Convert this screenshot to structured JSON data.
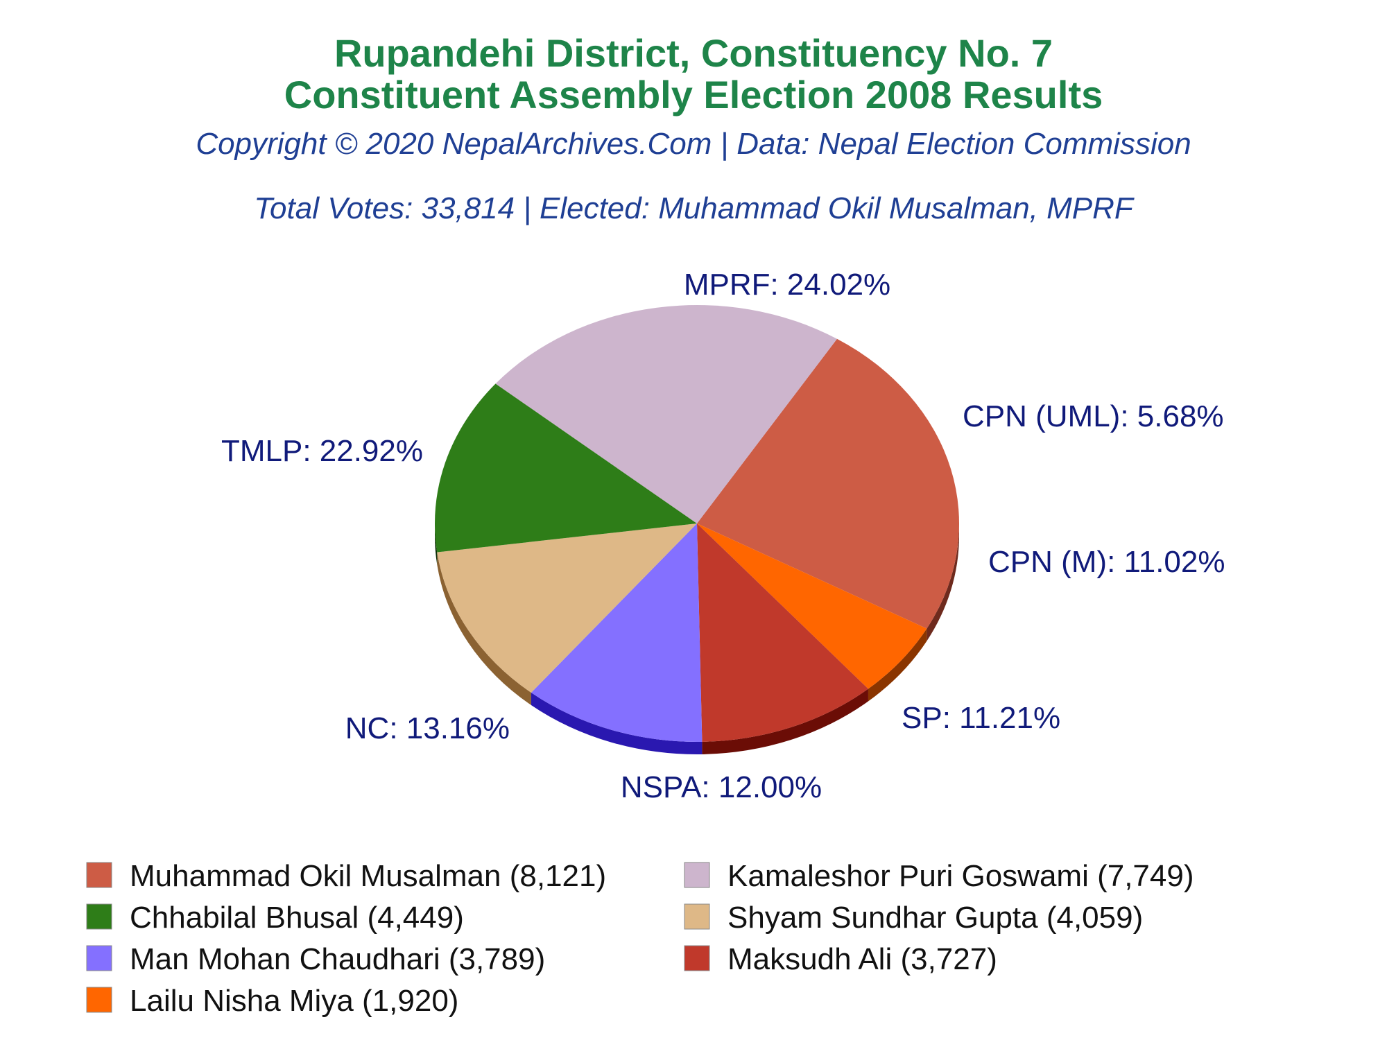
{
  "chart_data": {
    "type": "pie",
    "title_lines": [
      "Rupandehi District, Constituency No. 7",
      "Constituent Assembly Election 2008 Results"
    ],
    "subtitle": "Copyright © 2020 NepalArchives.Com | Data: Nepal Election Commission",
    "summary": "Total Votes: 33,814 | Elected: Muhammad Okil Musalman, MPRF",
    "slices": [
      {
        "label": "MPRF: 24.02%",
        "value": 24.02,
        "color": "#cd5c45",
        "side_color": "#6e2a1d"
      },
      {
        "label": "CPN (UML): 5.68%",
        "value": 5.68,
        "color": "#ff6600",
        "side_color": "#8a3500"
      },
      {
        "label": "CPN (M): 11.02%",
        "value": 11.02,
        "color": "#c0392b",
        "side_color": "#6b0d06"
      },
      {
        "label": "SP: 11.21%",
        "value": 11.21,
        "color": "#8470ff",
        "side_color": "#2a18b0"
      },
      {
        "label": "NSPA: 12.00%",
        "value": 12.0,
        "color": "#deb887",
        "side_color": "#8b6232"
      },
      {
        "label": "NC: 13.16%",
        "value": 13.16,
        "color": "#2e7d18",
        "side_color": "#0c2e05"
      },
      {
        "label": "TMLP: 22.92%",
        "value": 22.92,
        "color": "#cdb5cd",
        "side_color": "#7a5f7a"
      }
    ],
    "legend": [
      {
        "text": "Muhammad Okil Musalman (8,121)",
        "color": "#cd5c45"
      },
      {
        "text": "Kamaleshor Puri Goswami (7,749)",
        "color": "#cdb5cd"
      },
      {
        "text": "Chhabilal Bhusal (4,449)",
        "color": "#2e7d18"
      },
      {
        "text": "Shyam Sundhar Gupta (4,059)",
        "color": "#deb887"
      },
      {
        "text": "Man Mohan Chaudhari (3,789)",
        "color": "#8470ff"
      },
      {
        "text": "Maksudh Ali (3,727)",
        "color": "#c0392b"
      },
      {
        "text": "Lailu Nisha Miya (1,920)",
        "color": "#ff6600"
      }
    ]
  }
}
